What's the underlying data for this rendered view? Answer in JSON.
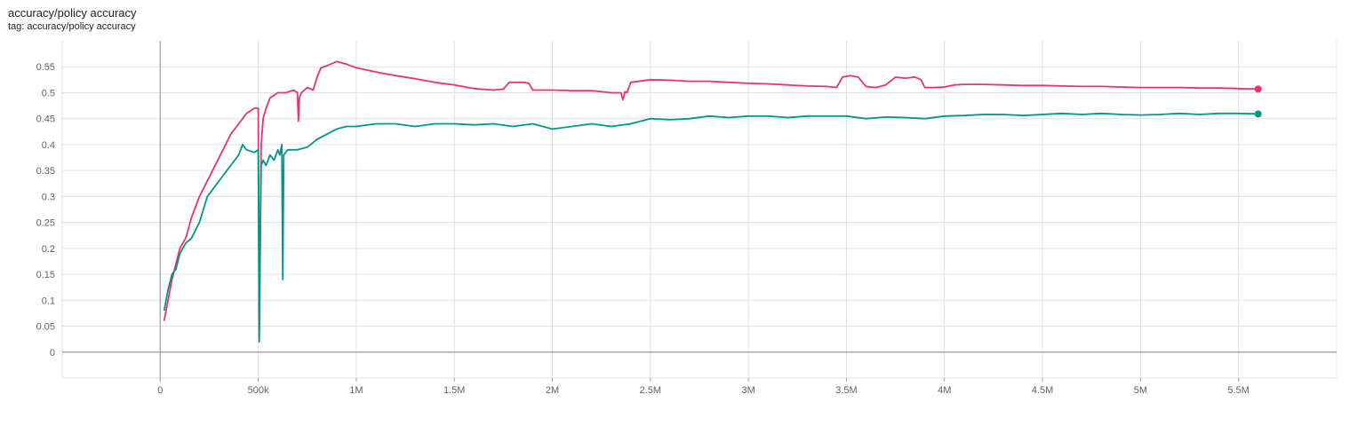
{
  "card": {
    "title": "accuracy/policy accuracy",
    "subtitle": "tag: accuracy/policy accuracy"
  },
  "colors": {
    "pink": "#e8336d",
    "teal": "#009688",
    "grid": "#e0e0e0",
    "axis": "#9e9e9e"
  },
  "chart_data": {
    "type": "line",
    "title": "accuracy/policy accuracy",
    "xlabel": "",
    "ylabel": "",
    "xlim": [
      -500000,
      6000000
    ],
    "ylim": [
      -0.05,
      0.6
    ],
    "grid": true,
    "x_ticks": [
      0,
      500000,
      1000000,
      1500000,
      2000000,
      2500000,
      3000000,
      3500000,
      4000000,
      4500000,
      5000000,
      5500000
    ],
    "x_tick_labels": [
      "0",
      "500k",
      "1M",
      "1.5M",
      "2M",
      "2.5M",
      "3M",
      "3.5M",
      "4M",
      "4.5M",
      "5M",
      "5.5M"
    ],
    "y_ticks": [
      0,
      0.05,
      0.1,
      0.15,
      0.2,
      0.25,
      0.3,
      0.35,
      0.4,
      0.45,
      0.5,
      0.55
    ],
    "y_tick_labels": [
      "0",
      "0.05",
      "0.1",
      "0.15",
      "0.2",
      "0.25",
      "0.3",
      "0.35",
      "0.4",
      "0.45",
      "0.5",
      "0.55"
    ],
    "series": [
      {
        "color": "#e8336d",
        "x": [
          20000,
          40000,
          60000,
          80000,
          100000,
          130000,
          160000,
          200000,
          240000,
          280000,
          320000,
          360000,
          400000,
          440000,
          480000,
          500000,
          505000,
          510000,
          515000,
          525000,
          540000,
          560000,
          600000,
          640000,
          680000,
          700000,
          705000,
          710000,
          720000,
          750000,
          780000,
          800000,
          820000,
          850000,
          900000,
          950000,
          1000000,
          1100000,
          1200000,
          1300000,
          1400000,
          1500000,
          1600000,
          1700000,
          1750000,
          1780000,
          1800000,
          1850000,
          1880000,
          1900000,
          1950000,
          2000000,
          2100000,
          2200000,
          2300000,
          2350000,
          2360000,
          2370000,
          2380000,
          2400000,
          2500000,
          2600000,
          2700000,
          2800000,
          2900000,
          3000000,
          3100000,
          3200000,
          3300000,
          3400000,
          3450000,
          3480000,
          3520000,
          3560000,
          3600000,
          3650000,
          3700000,
          3750000,
          3800000,
          3850000,
          3880000,
          3900000,
          3950000,
          4000000,
          4050000,
          4100000,
          4200000,
          4300000,
          4400000,
          4500000,
          4600000,
          4700000,
          4800000,
          4900000,
          5000000,
          5100000,
          5200000,
          5300000,
          5400000,
          5500000,
          5600000
        ],
        "values": [
          0.06,
          0.1,
          0.14,
          0.17,
          0.2,
          0.22,
          0.26,
          0.3,
          0.33,
          0.36,
          0.39,
          0.42,
          0.44,
          0.46,
          0.47,
          0.47,
          0.03,
          0.2,
          0.4,
          0.45,
          0.47,
          0.49,
          0.5,
          0.5,
          0.505,
          0.5,
          0.445,
          0.49,
          0.5,
          0.51,
          0.505,
          0.53,
          0.548,
          0.552,
          0.56,
          0.555,
          0.548,
          0.54,
          0.533,
          0.527,
          0.52,
          0.515,
          0.508,
          0.505,
          0.507,
          0.52,
          0.52,
          0.52,
          0.518,
          0.505,
          0.505,
          0.505,
          0.504,
          0.504,
          0.5,
          0.5,
          0.486,
          0.502,
          0.5,
          0.52,
          0.525,
          0.524,
          0.522,
          0.522,
          0.52,
          0.518,
          0.517,
          0.515,
          0.513,
          0.512,
          0.51,
          0.53,
          0.533,
          0.53,
          0.512,
          0.51,
          0.515,
          0.53,
          0.528,
          0.53,
          0.525,
          0.51,
          0.51,
          0.511,
          0.515,
          0.516,
          0.516,
          0.515,
          0.514,
          0.514,
          0.513,
          0.512,
          0.512,
          0.511,
          0.51,
          0.51,
          0.51,
          0.509,
          0.509,
          0.508,
          0.507
        ]
      },
      {
        "color": "#009688",
        "x": [
          20000,
          40000,
          60000,
          80000,
          100000,
          130000,
          160000,
          200000,
          240000,
          280000,
          320000,
          360000,
          380000,
          400000,
          420000,
          440000,
          480000,
          500000,
          505000,
          510000,
          515000,
          525000,
          540000,
          560000,
          580000,
          600000,
          610000,
          620000,
          625000,
          630000,
          650000,
          700000,
          750000,
          800000,
          850000,
          900000,
          950000,
          1000000,
          1100000,
          1200000,
          1300000,
          1400000,
          1500000,
          1600000,
          1700000,
          1800000,
          1900000,
          2000000,
          2100000,
          2200000,
          2300000,
          2400000,
          2500000,
          2600000,
          2700000,
          2800000,
          2900000,
          3000000,
          3100000,
          3200000,
          3300000,
          3400000,
          3500000,
          3600000,
          3700000,
          3800000,
          3900000,
          4000000,
          4100000,
          4200000,
          4300000,
          4400000,
          4500000,
          4600000,
          4700000,
          4800000,
          4900000,
          5000000,
          5100000,
          5200000,
          5300000,
          5400000,
          5500000,
          5600000
        ],
        "values": [
          0.08,
          0.12,
          0.15,
          0.16,
          0.19,
          0.21,
          0.22,
          0.25,
          0.3,
          0.32,
          0.34,
          0.36,
          0.37,
          0.38,
          0.4,
          0.39,
          0.385,
          0.39,
          0.02,
          0.22,
          0.36,
          0.37,
          0.36,
          0.38,
          0.37,
          0.39,
          0.38,
          0.4,
          0.14,
          0.38,
          0.39,
          0.39,
          0.395,
          0.41,
          0.42,
          0.43,
          0.435,
          0.435,
          0.44,
          0.44,
          0.435,
          0.44,
          0.44,
          0.438,
          0.44,
          0.435,
          0.44,
          0.43,
          0.435,
          0.44,
          0.435,
          0.44,
          0.45,
          0.448,
          0.45,
          0.455,
          0.452,
          0.455,
          0.455,
          0.452,
          0.455,
          0.455,
          0.455,
          0.45,
          0.453,
          0.452,
          0.45,
          0.455,
          0.456,
          0.458,
          0.458,
          0.456,
          0.458,
          0.46,
          0.458,
          0.46,
          0.458,
          0.457,
          0.458,
          0.46,
          0.458,
          0.46,
          0.46,
          0.459
        ]
      }
    ]
  }
}
